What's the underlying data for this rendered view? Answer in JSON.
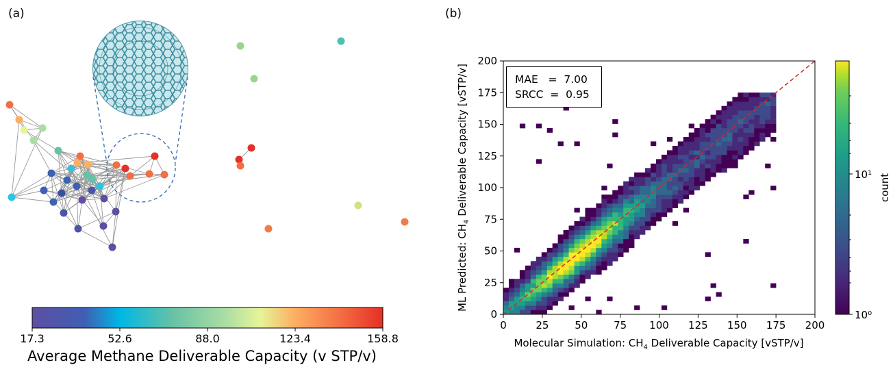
{
  "panel_a": {
    "label": "(a)",
    "colorbar": {
      "title": "Average Methane Deliverable Capacity (v STP/v)",
      "ticks": [
        "17.3",
        "52.6",
        "88.0",
        "123.4",
        "158.8"
      ],
      "min": 17.3,
      "max": 158.8,
      "colormap": [
        "#5e4fa2",
        "#3f5fb4",
        "#00b7e6",
        "#66c2a5",
        "#abdda4",
        "#e6f598",
        "#fdae61",
        "#f46d43",
        "#e53025"
      ]
    }
  },
  "panel_b": {
    "label": "(b)",
    "metrics": {
      "mae_line": "MAE   =  7.00",
      "srcc_line": "SRCC  =  0.95"
    },
    "colorbar": {
      "label": "count",
      "ticks": [
        "10¹",
        "10⁰"
      ]
    },
    "parity_line_color": "#d62728"
  },
  "chart_data": [
    {
      "type": "scatter",
      "title": "",
      "note": "network graph; node colour encodes capacity",
      "nodes": [
        {
          "value": 150
        },
        {
          "value": 128
        },
        {
          "value": 110
        },
        {
          "value": 88
        },
        {
          "value": 128
        },
        {
          "value": 158
        },
        {
          "value": 153
        },
        {
          "value": 148
        },
        {
          "value": 150
        },
        {
          "value": 140
        },
        {
          "value": 150
        },
        {
          "value": 155
        }
      ]
    },
    {
      "type": "heatmap",
      "xlabel": "Molecular Simulation: CH4 Deliverable Capacity [vSTP/v]",
      "ylabel": "ML Predicted: CH4 Deliverable Capacity [vSTP/v]",
      "xlim": [
        0,
        200
      ],
      "ylim": [
        0,
        200
      ],
      "xticks": [
        0,
        25,
        50,
        75,
        100,
        125,
        150,
        175,
        200
      ],
      "yticks": [
        0,
        25,
        50,
        75,
        100,
        125,
        150,
        175,
        200
      ],
      "color_scale": "log",
      "count_range": [
        1,
        60
      ],
      "MAE": 7.0,
      "SRCC": 0.95
    }
  ]
}
